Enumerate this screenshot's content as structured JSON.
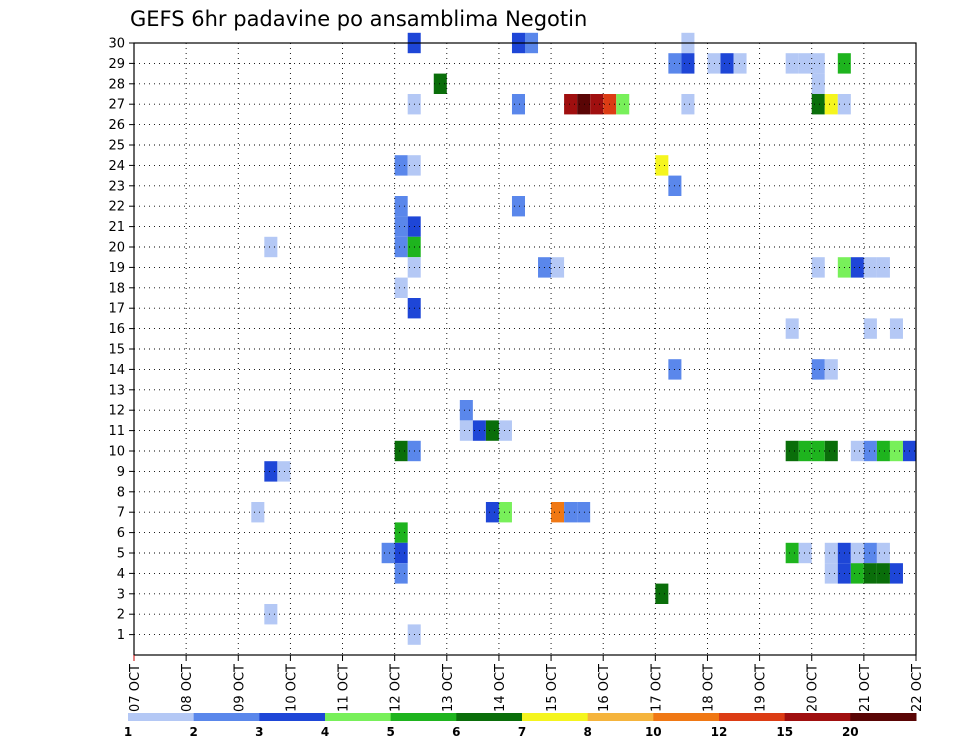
{
  "chart_data": {
    "type": "heatmap",
    "title": "GEFS 6hr padavine po ansamblima Negotin",
    "x_ticks": [
      "07 OCT",
      "08 OCT",
      "09 OCT",
      "10 OCT",
      "11 OCT",
      "12 OCT",
      "13 OCT",
      "14 OCT",
      "15 OCT",
      "16 OCT",
      "17 OCT",
      "18 OCT",
      "19 OCT",
      "20 OCT",
      "21 OCT",
      "22 OCT"
    ],
    "y_ticks": [
      "1",
      "2",
      "3",
      "4",
      "5",
      "6",
      "7",
      "8",
      "9",
      "10",
      "11",
      "12",
      "13",
      "14",
      "15",
      "16",
      "17",
      "18",
      "19",
      "20",
      "21",
      "22",
      "23",
      "24",
      "25",
      "26",
      "27",
      "28",
      "29",
      "30"
    ],
    "ylim": [
      0,
      30
    ],
    "grid": true,
    "legend_position": "bottom",
    "legend": {
      "labels": [
        "1",
        "2",
        "3",
        "4",
        "5",
        "6",
        "7",
        "8",
        "10",
        "12",
        "15",
        "20"
      ],
      "colors": [
        "#b4c8f5",
        "#5a87eb",
        "#1e46d7",
        "#78f05a",
        "#1eb41e",
        "#0a6e0a",
        "#f5f51e",
        "#f5b43c",
        "#f07814",
        "#dc3c14",
        "#a00f0f",
        "#5a0505"
      ]
    },
    "value_unit_note": "",
    "steps_per_day": 4,
    "cells": [
      {
        "t": 21.5,
        "y": 30,
        "v": 3
      },
      {
        "t": 29.5,
        "y": 30,
        "v": 3
      },
      {
        "t": 30.5,
        "y": 30,
        "v": 2
      },
      {
        "t": 42.5,
        "y": 30,
        "v": 1
      },
      {
        "t": 41.5,
        "y": 29,
        "v": 2
      },
      {
        "t": 42.5,
        "y": 29,
        "v": 3
      },
      {
        "t": 44.5,
        "y": 29,
        "v": 1
      },
      {
        "t": 45.5,
        "y": 29,
        "v": 3
      },
      {
        "t": 46.5,
        "y": 29,
        "v": 1
      },
      {
        "t": 50.5,
        "y": 29,
        "v": 1
      },
      {
        "t": 51.5,
        "y": 29,
        "v": 1
      },
      {
        "t": 52.5,
        "y": 29,
        "v": 1
      },
      {
        "t": 54.5,
        "y": 29,
        "v": 5
      },
      {
        "t": 52.5,
        "y": 28,
        "v": 1
      },
      {
        "t": 23.5,
        "y": 28,
        "v": 6
      },
      {
        "t": 21.5,
        "y": 27,
        "v": 1
      },
      {
        "t": 29.5,
        "y": 27,
        "v": 2
      },
      {
        "t": 33.5,
        "y": 27,
        "v": 15
      },
      {
        "t": 34.5,
        "y": 27,
        "v": 20
      },
      {
        "t": 35.5,
        "y": 27,
        "v": 15
      },
      {
        "t": 36.5,
        "y": 27,
        "v": 12
      },
      {
        "t": 37.5,
        "y": 27,
        "v": 4
      },
      {
        "t": 42.5,
        "y": 27,
        "v": 1
      },
      {
        "t": 52.5,
        "y": 27,
        "v": 6
      },
      {
        "t": 53.5,
        "y": 27,
        "v": 7
      },
      {
        "t": 54.5,
        "y": 27,
        "v": 1
      },
      {
        "t": 20.5,
        "y": 24,
        "v": 2
      },
      {
        "t": 21.5,
        "y": 24,
        "v": 1
      },
      {
        "t": 40.5,
        "y": 24,
        "v": 7
      },
      {
        "t": 41.5,
        "y": 23,
        "v": 2
      },
      {
        "t": 20.5,
        "y": 22,
        "v": 2
      },
      {
        "t": 29.5,
        "y": 22,
        "v": 2
      },
      {
        "t": 20.5,
        "y": 21,
        "v": 2
      },
      {
        "t": 21.5,
        "y": 21,
        "v": 3
      },
      {
        "t": 10.5,
        "y": 20,
        "v": 1
      },
      {
        "t": 20.5,
        "y": 20,
        "v": 2
      },
      {
        "t": 21.5,
        "y": 20,
        "v": 5
      },
      {
        "t": 21.5,
        "y": 19,
        "v": 1
      },
      {
        "t": 31.5,
        "y": 19,
        "v": 2
      },
      {
        "t": 32.5,
        "y": 19,
        "v": 1
      },
      {
        "t": 52.5,
        "y": 19,
        "v": 1
      },
      {
        "t": 54.5,
        "y": 19,
        "v": 4
      },
      {
        "t": 55.5,
        "y": 19,
        "v": 3
      },
      {
        "t": 56.5,
        "y": 19,
        "v": 1
      },
      {
        "t": 57.5,
        "y": 19,
        "v": 1
      },
      {
        "t": 20.5,
        "y": 18,
        "v": 1
      },
      {
        "t": 21.5,
        "y": 17,
        "v": 3
      },
      {
        "t": 50.5,
        "y": 16,
        "v": 1
      },
      {
        "t": 56.5,
        "y": 16,
        "v": 1
      },
      {
        "t": 58.5,
        "y": 16,
        "v": 1
      },
      {
        "t": 41.5,
        "y": 14,
        "v": 2
      },
      {
        "t": 52.5,
        "y": 14,
        "v": 2
      },
      {
        "t": 53.5,
        "y": 14,
        "v": 1
      },
      {
        "t": 25.5,
        "y": 12,
        "v": 2
      },
      {
        "t": 25.5,
        "y": 11,
        "v": 1
      },
      {
        "t": 26.5,
        "y": 11,
        "v": 3
      },
      {
        "t": 27.5,
        "y": 11,
        "v": 6
      },
      {
        "t": 28.5,
        "y": 11,
        "v": 1
      },
      {
        "t": 20.5,
        "y": 10,
        "v": 6
      },
      {
        "t": 21.5,
        "y": 10,
        "v": 2
      },
      {
        "t": 50.5,
        "y": 10,
        "v": 6
      },
      {
        "t": 51.5,
        "y": 10,
        "v": 5
      },
      {
        "t": 52.5,
        "y": 10,
        "v": 5
      },
      {
        "t": 53.5,
        "y": 10,
        "v": 6
      },
      {
        "t": 55.5,
        "y": 10,
        "v": 1
      },
      {
        "t": 56.5,
        "y": 10,
        "v": 2
      },
      {
        "t": 57.5,
        "y": 10,
        "v": 5
      },
      {
        "t": 58.5,
        "y": 10,
        "v": 4
      },
      {
        "t": 59.5,
        "y": 10,
        "v": 3
      },
      {
        "t": 10.5,
        "y": 9,
        "v": 3
      },
      {
        "t": 11.5,
        "y": 9,
        "v": 1
      },
      {
        "t": 9.5,
        "y": 7,
        "v": 1
      },
      {
        "t": 27.5,
        "y": 7,
        "v": 3
      },
      {
        "t": 28.5,
        "y": 7,
        "v": 4
      },
      {
        "t": 32.5,
        "y": 7,
        "v": 10
      },
      {
        "t": 33.5,
        "y": 7,
        "v": 2
      },
      {
        "t": 34.5,
        "y": 7,
        "v": 2
      },
      {
        "t": 20.5,
        "y": 6,
        "v": 5
      },
      {
        "t": 19.5,
        "y": 5,
        "v": 2
      },
      {
        "t": 20.5,
        "y": 5,
        "v": 3
      },
      {
        "t": 50.5,
        "y": 5,
        "v": 5
      },
      {
        "t": 51.5,
        "y": 5,
        "v": 1
      },
      {
        "t": 53.5,
        "y": 5,
        "v": 1
      },
      {
        "t": 54.5,
        "y": 5,
        "v": 3
      },
      {
        "t": 55.5,
        "y": 5,
        "v": 1
      },
      {
        "t": 56.5,
        "y": 5,
        "v": 2
      },
      {
        "t": 57.5,
        "y": 5,
        "v": 1
      },
      {
        "t": 20.5,
        "y": 4,
        "v": 2
      },
      {
        "t": 53.5,
        "y": 4,
        "v": 1
      },
      {
        "t": 54.5,
        "y": 4,
        "v": 3
      },
      {
        "t": 55.5,
        "y": 4,
        "v": 5
      },
      {
        "t": 56.5,
        "y": 4,
        "v": 6
      },
      {
        "t": 57.5,
        "y": 4,
        "v": 6
      },
      {
        "t": 58.5,
        "y": 4,
        "v": 3
      },
      {
        "t": 40.5,
        "y": 3,
        "v": 6
      },
      {
        "t": 10.5,
        "y": 2,
        "v": 1
      },
      {
        "t": 21.5,
        "y": 1,
        "v": 1
      }
    ]
  }
}
